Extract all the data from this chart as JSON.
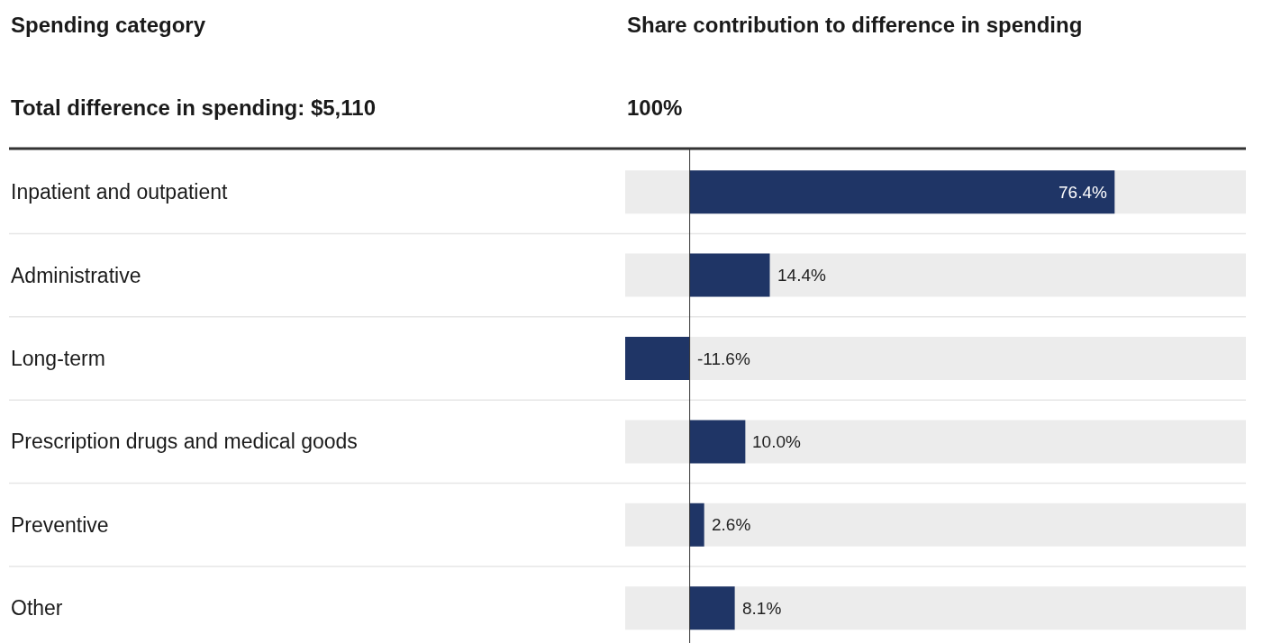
{
  "chart_data": {
    "type": "bar",
    "orientation": "horizontal",
    "annotations": [
      "Spending category",
      "Share contribution to difference in spending",
      "Total difference in spending: $5,110",
      "100%"
    ],
    "categories": [
      "Inpatient and outpatient",
      "Administrative",
      "Long-term",
      "Prescription drugs and medical goods",
      "Preventive",
      "Other"
    ],
    "values": [
      76.4,
      14.4,
      -11.6,
      10.0,
      2.6,
      8.1
    ],
    "value_labels": [
      "76.4%",
      "14.4%",
      "-11.6%",
      "10.0%",
      "2.6%",
      "8.1%"
    ],
    "color": "#1f3566",
    "xlim": [
      -11.6,
      100
    ],
    "tick_labels": "y"
  }
}
